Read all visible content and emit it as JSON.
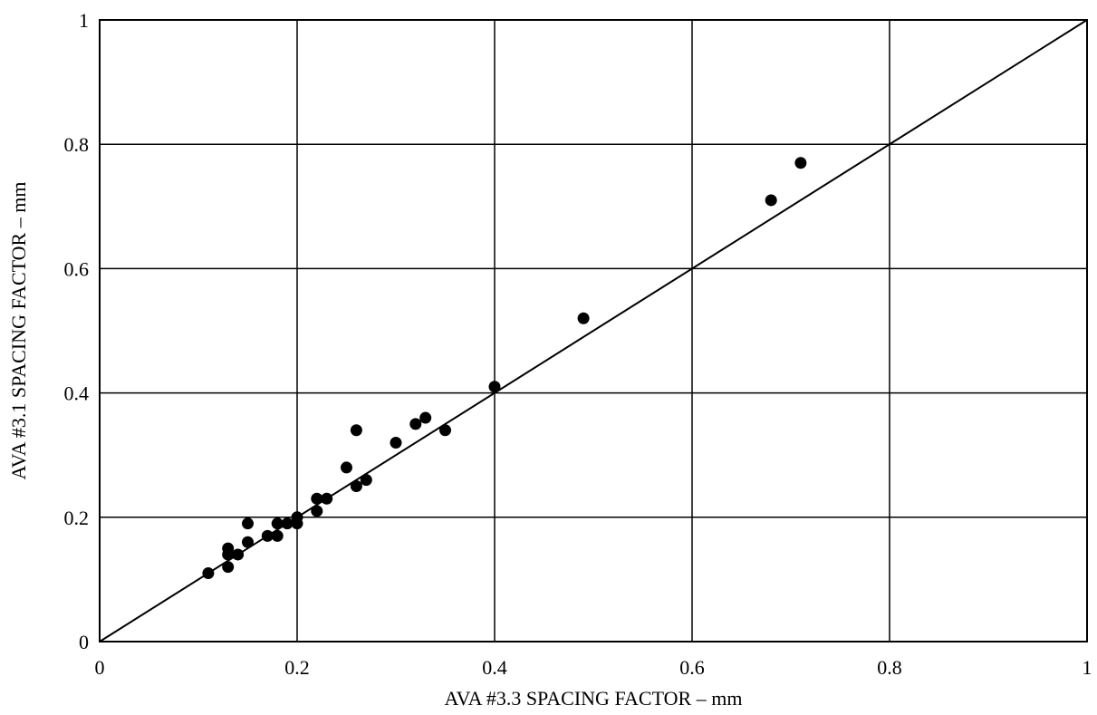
{
  "chart_data": {
    "type": "scatter",
    "title": "",
    "xlabel": "AVA #3.3 SPACING FACTOR – mm",
    "ylabel": "AVA #3.1 SPACING FACTOR – mm",
    "xlim": [
      0,
      1
    ],
    "ylim": [
      0,
      1
    ],
    "xticks": [
      "0",
      "0.2",
      "0.4",
      "0.6",
      "0.8",
      "1"
    ],
    "yticks": [
      "0",
      "0.2",
      "0.4",
      "0.6",
      "0.8",
      "1"
    ],
    "grid": true,
    "legend": "none",
    "reference_line": {
      "from": [
        0,
        0
      ],
      "to": [
        1,
        1
      ]
    },
    "colors": {
      "points": "#000000",
      "grid": "#000000"
    },
    "points": [
      {
        "x": 0.11,
        "y": 0.11
      },
      {
        "x": 0.13,
        "y": 0.12
      },
      {
        "x": 0.13,
        "y": 0.14
      },
      {
        "x": 0.13,
        "y": 0.15
      },
      {
        "x": 0.14,
        "y": 0.14
      },
      {
        "x": 0.15,
        "y": 0.16
      },
      {
        "x": 0.15,
        "y": 0.19
      },
      {
        "x": 0.17,
        "y": 0.17
      },
      {
        "x": 0.18,
        "y": 0.17
      },
      {
        "x": 0.18,
        "y": 0.19
      },
      {
        "x": 0.19,
        "y": 0.19
      },
      {
        "x": 0.2,
        "y": 0.19
      },
      {
        "x": 0.2,
        "y": 0.2
      },
      {
        "x": 0.22,
        "y": 0.21
      },
      {
        "x": 0.22,
        "y": 0.23
      },
      {
        "x": 0.23,
        "y": 0.23
      },
      {
        "x": 0.25,
        "y": 0.28
      },
      {
        "x": 0.26,
        "y": 0.25
      },
      {
        "x": 0.26,
        "y": 0.34
      },
      {
        "x": 0.27,
        "y": 0.26
      },
      {
        "x": 0.3,
        "y": 0.32
      },
      {
        "x": 0.32,
        "y": 0.35
      },
      {
        "x": 0.33,
        "y": 0.36
      },
      {
        "x": 0.35,
        "y": 0.34
      },
      {
        "x": 0.4,
        "y": 0.41
      },
      {
        "x": 0.49,
        "y": 0.52
      },
      {
        "x": 0.68,
        "y": 0.71
      },
      {
        "x": 0.71,
        "y": 0.77
      }
    ]
  }
}
